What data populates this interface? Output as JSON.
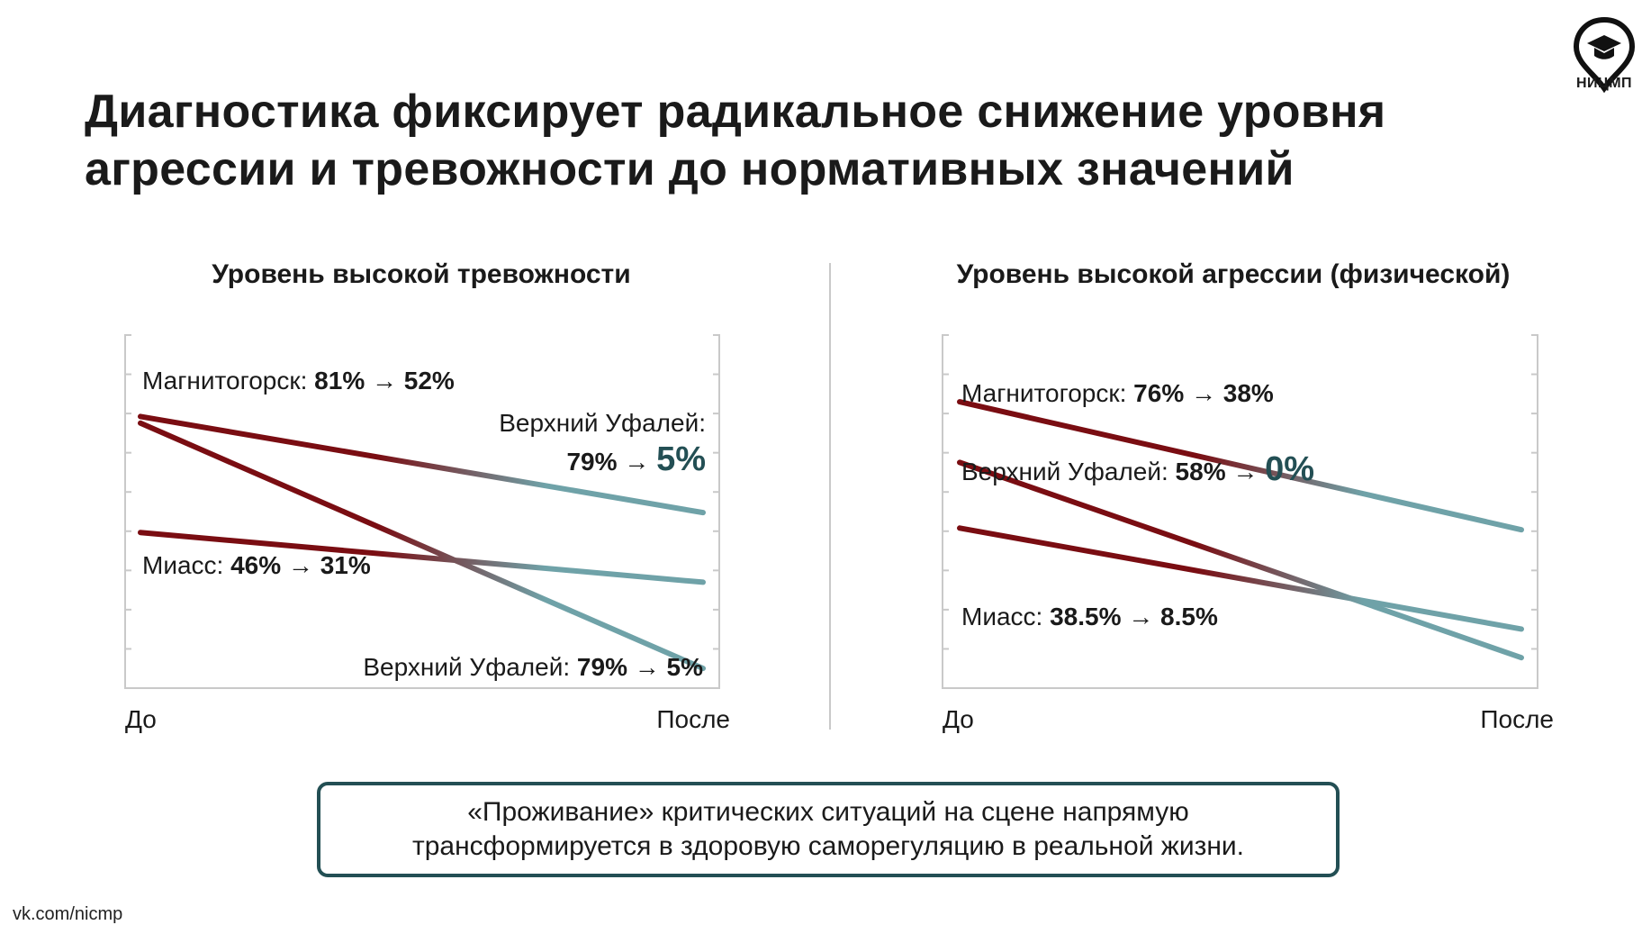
{
  "title": "Диагностика фиксирует радикальное снижение уровня агрессии и тревожности до нормативных значений",
  "logo": {
    "text": "НИЦМП",
    "icon": "graduation-cap-pin-icon"
  },
  "colors": {
    "before": "#7a0d12",
    "after": "#6fa2a8",
    "accent": "#234f54",
    "axis": "#c9c9c9"
  },
  "chart_data": [
    {
      "type": "line",
      "title": "Уровень высокой тревожности",
      "categories": [
        "До",
        "После"
      ],
      "ylim": [
        0,
        100
      ],
      "grid": false,
      "series": [
        {
          "name": "Магнитогорск",
          "values": [
            81,
            52
          ],
          "label_prefix": "Магнитогорск: ",
          "label_values": "81% → 52%"
        },
        {
          "name": "Верхний Уфалей",
          "values": [
            79,
            5
          ],
          "label_prefix": "Верхний Уфалей: ",
          "label_values": "79% → 5%"
        },
        {
          "name": "Миасс",
          "values": [
            46,
            31
          ],
          "label_prefix": "Миасс: ",
          "label_values": "46% → 31%"
        }
      ],
      "annotation": {
        "line1": "Верхний Уфалей:",
        "line2": "79% → ",
        "highlight": "5%"
      }
    },
    {
      "type": "line",
      "title": "Уровень высокой агрессии (физической)",
      "categories": [
        "До",
        "После"
      ],
      "ylim": [
        0,
        100
      ],
      "grid": false,
      "series": [
        {
          "name": "Магнитогорск",
          "values": [
            76,
            38
          ],
          "label_prefix": "Магнитогорск: ",
          "label_values": "76% → 38%"
        },
        {
          "name": "Верхний Уфалей",
          "values": [
            58,
            0
          ],
          "label_prefix": "Верхний Уфалей: ",
          "label_values": "58% → ",
          "highlight": "0%"
        },
        {
          "name": "Миасс",
          "values": [
            38.5,
            8.5
          ],
          "label_prefix": "Миасс: ",
          "label_values": "38.5% → 8.5%"
        }
      ]
    }
  ],
  "takeaway": "«Проживание» критических ситуаций на сцене напрямую трансформируется в здоровую саморегуляцию в реальной жизни.",
  "footer": "vk.com/nicmp"
}
